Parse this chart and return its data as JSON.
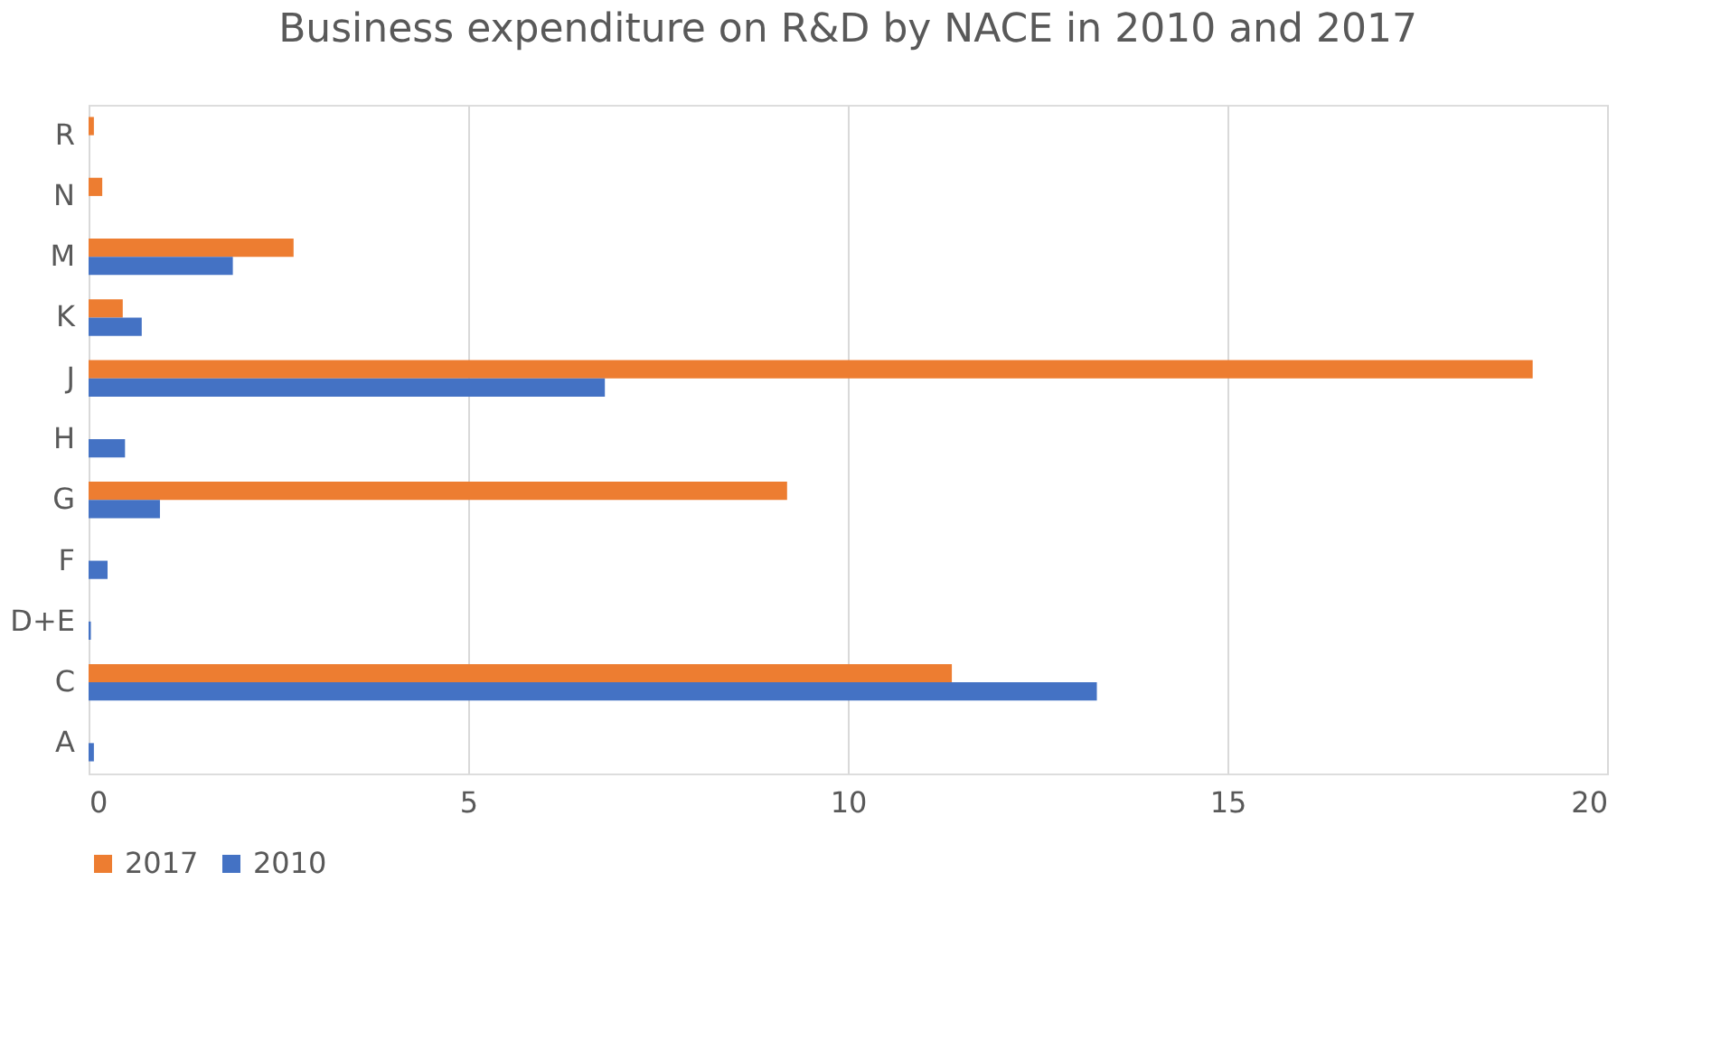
{
  "chart_data": {
    "type": "bar",
    "orientation": "horizontal",
    "title": "Business expenditure on R&D by NACE in 2010 and 2017",
    "categories": [
      "R",
      "N",
      "M",
      "K",
      "J",
      "H",
      "G",
      "F",
      "D+E",
      "C",
      "A"
    ],
    "series": [
      {
        "name": "2017",
        "color": "#ed7d31",
        "values": [
          0.07,
          0.18,
          2.7,
          0.45,
          19.02,
          null,
          9.2,
          null,
          null,
          11.37,
          null
        ]
      },
      {
        "name": "2010",
        "color": "#4472c4",
        "values": [
          null,
          null,
          1.9,
          0.7,
          6.8,
          0.48,
          0.94,
          0.25,
          0.03,
          13.28,
          0.07
        ]
      }
    ],
    "xlim": [
      0,
      20
    ],
    "xticks": [
      0,
      5,
      10,
      15,
      20
    ],
    "grid": "x",
    "legend": "bottom"
  }
}
